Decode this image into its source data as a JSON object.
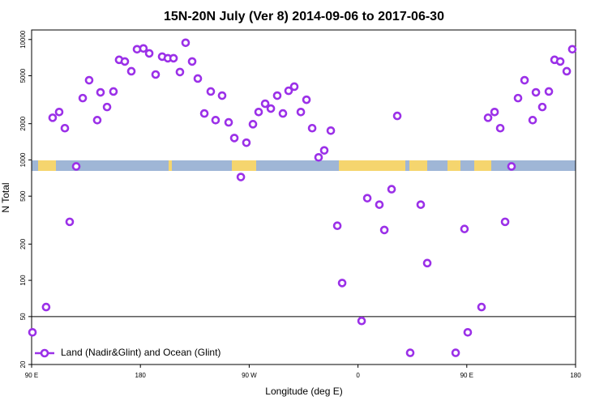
{
  "chart_data": {
    "type": "scatter",
    "title": "15N-20N July (Ver 8)   2014-09-06 to 2017-06-30",
    "x_label": "Longitude (deg E)",
    "y_label": "N Total",
    "y_scale": "log",
    "xlim": [
      90,
      540
    ],
    "ylim": [
      20,
      12000
    ],
    "xticks": [
      {
        "value": 90,
        "label": "90 E"
      },
      180,
      {
        "value": 270,
        "label": "90 W"
      },
      {
        "value": 360,
        "label": "0"
      },
      {
        "value": 450,
        "label": "90 E"
      },
      {
        "value": 540,
        "label": "180"
      }
    ],
    "yticks": [
      20,
      50,
      100,
      200,
      500,
      1000,
      2000,
      5000,
      10000
    ],
    "hline": 50,
    "legend": "bottom-left",
    "series": [
      {
        "name": "Land (Nadir&Glint) and Ocean (Glint)",
        "color": "#9b30e8",
        "x": [
          90.7,
          102,
          107.4,
          112.8,
          117.5,
          121.5,
          126.9,
          132.3,
          137.6,
          144.3,
          147,
          152.4,
          157.7,
          162.4,
          167.1,
          172.5,
          177.2,
          182.5,
          187.3,
          192.6,
          198,
          202.7,
          207.4,
          212.7,
          217.4,
          222.8,
          227.5,
          232.9,
          238.2,
          242.2,
          247.6,
          253,
          257.7,
          263.1,
          267.7,
          273.1,
          277.8,
          283.2,
          287.9,
          293.2,
          297.9,
          302.6,
          307.3,
          312.7,
          317.4,
          322.1,
          327.4,
          332.1,
          337.5,
          342.9,
          346.9,
          363,
          367.7,
          377.7,
          381.8,
          387.8,
          392.5,
          403.2,
          411.9,
          417.3,
          440.8,
          448.1,
          450.8,
          462.2,
          467.6,
          473,
          477.7,
          481.7,
          487,
          492.4,
          497.8,
          504.5,
          507.2,
          512.5,
          517.9,
          522.6,
          527.3,
          532.7,
          537.3
        ],
        "values": [
          37,
          60,
          2240,
          2500,
          1835,
          306,
          883,
          3260,
          4590,
          2140,
          3640,
          2750,
          3700,
          6780,
          6570,
          5450,
          8300,
          8430,
          7670,
          5120,
          7210,
          6990,
          6990,
          5370,
          9400,
          6570,
          4740,
          2430,
          3700,
          2140,
          3420,
          2050,
          1520,
          721,
          1390,
          1980,
          2500,
          2930,
          2670,
          3420,
          2430,
          3750,
          4060,
          2500,
          3160,
          1835,
          1050,
          1200,
          1750,
          284,
          95,
          46,
          481,
          425,
          262,
          571,
          2320,
          25,
          425,
          139,
          25,
          267,
          37,
          60,
          2240,
          2500,
          1835,
          306,
          883,
          3260,
          4590,
          2140,
          3640,
          2750,
          3700,
          6780,
          6570,
          5450,
          8300
        ]
      }
    ]
  }
}
